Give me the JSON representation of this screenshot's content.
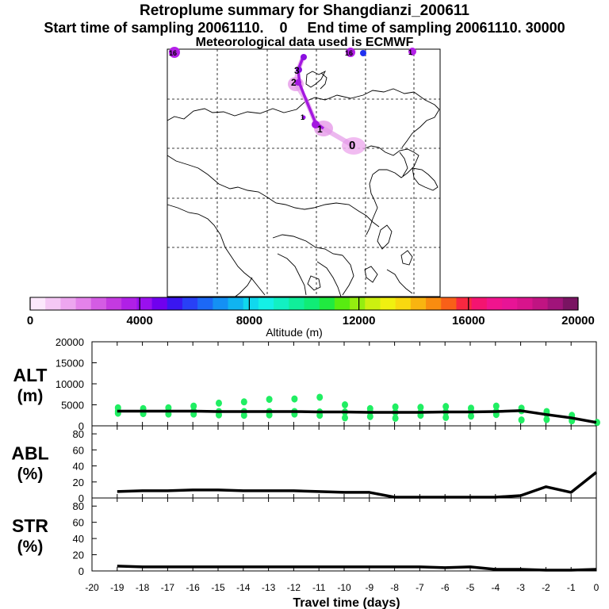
{
  "header": {
    "title": "Retroplume summary for Shangdianzi_200611",
    "line2": "Start time of sampling 20061110.    0     End time of sampling 20061110. 30000",
    "line3": "Meteorological data used is ECMWF"
  },
  "map": {
    "track_labels": [
      "0",
      "1",
      "2",
      "3"
    ],
    "small_markers": [
      "1",
      "16",
      "16",
      "1"
    ]
  },
  "colorbar": {
    "ticks": [
      "0",
      "4000",
      "8000",
      "12000",
      "16000",
      "20000"
    ],
    "label": "Altitude  (m)",
    "colors": [
      "#fce8fc",
      "#f5c8f5",
      "#eda6ef",
      "#e482ea",
      "#d45ce4",
      "#c43ae0",
      "#b020e6",
      "#9a10ee",
      "#7000ee",
      "#3a16f0",
      "#2840f6",
      "#1c68f6",
      "#1490f4",
      "#10b4f0",
      "#10d8ee",
      "#14f0e6",
      "#12f0c2",
      "#10ee9a",
      "#10ec76",
      "#20ea40",
      "#58ec10",
      "#94ee10",
      "#ccf010",
      "#f0f010",
      "#f8d810",
      "#f8b410",
      "#f88c10",
      "#f86018",
      "#f82840",
      "#f41470",
      "#f0148e",
      "#e81496",
      "#d8148c",
      "#c01482",
      "#a0147a",
      "#7a1462"
    ]
  },
  "x_axis": {
    "ticks": [
      "-20",
      "-19",
      "-18",
      "-17",
      "-16",
      "-15",
      "-14",
      "-13",
      "-12",
      "-11",
      "-10",
      "-9",
      "-8",
      "-7",
      "-6",
      "-5",
      "-4",
      "-3",
      "-2",
      "-1",
      "0"
    ],
    "label": "Travel time (days)"
  },
  "panels": {
    "alt": {
      "label_line1": "ALT",
      "label_line2": "(m)",
      "yticks": [
        "0",
        "5000",
        "10000",
        "15000",
        "20000"
      ]
    },
    "abl": {
      "label_line1": "ABL",
      "label_line2": "(%)",
      "yticks": [
        "0",
        "20",
        "40",
        "60",
        "80"
      ]
    },
    "str": {
      "label_line1": "STR",
      "label_line2": "(%)",
      "yticks": [
        "0",
        "20",
        "40",
        "60",
        "80"
      ]
    }
  },
  "chart_data": {
    "type": "line",
    "title": "Retroplume summary for Shangdianzi_200611",
    "xlabel": "Travel time (days)",
    "x": [
      -19,
      -18,
      -17,
      -16,
      -15,
      -14,
      -13,
      -12,
      -11,
      -10,
      -9,
      -8,
      -7,
      -6,
      -5,
      -4,
      -3,
      -2,
      -1,
      0
    ],
    "series": [
      {
        "name": "ALT (m)",
        "ylim": [
          0,
          20000
        ],
        "values": [
          3500,
          3500,
          3500,
          3500,
          3400,
          3400,
          3400,
          3400,
          3300,
          3300,
          3200,
          3200,
          3200,
          3300,
          3300,
          3400,
          3600,
          2700,
          1900,
          800
        ]
      },
      {
        "name": "ABL (%)",
        "ylim": [
          0,
          90
        ],
        "values": [
          8,
          9,
          9,
          10,
          10,
          9,
          9,
          9,
          8,
          7,
          7,
          1,
          1,
          1,
          1,
          1,
          3,
          14,
          7,
          32
        ]
      },
      {
        "name": "STR (%)",
        "ylim": [
          0,
          90
        ],
        "values": [
          6,
          5,
          5,
          5,
          5,
          5,
          5,
          5,
          5,
          5,
          5,
          5,
          5,
          4,
          5,
          2,
          2,
          1,
          1,
          2
        ]
      }
    ],
    "alt_scatter": [
      [
        -19,
        3500
      ],
      [
        -19,
        4300
      ],
      [
        -19,
        3000
      ],
      [
        -18,
        3500
      ],
      [
        -18,
        4100
      ],
      [
        -18,
        2900
      ],
      [
        -17,
        3500
      ],
      [
        -17,
        4300
      ],
      [
        -17,
        2800
      ],
      [
        -16,
        3500
      ],
      [
        -16,
        4700
      ],
      [
        -16,
        2800
      ],
      [
        -15,
        3400
      ],
      [
        -15,
        5400
      ],
      [
        -15,
        2600
      ],
      [
        -14,
        3400
      ],
      [
        -14,
        5700
      ],
      [
        -14,
        2500
      ],
      [
        -13,
        3400
      ],
      [
        -13,
        6300
      ],
      [
        -13,
        2600
      ],
      [
        -12,
        3400
      ],
      [
        -12,
        6400
      ],
      [
        -12,
        2800
      ],
      [
        -11,
        3300
      ],
      [
        -11,
        6800
      ],
      [
        -11,
        2500
      ],
      [
        -10,
        3300
      ],
      [
        -10,
        5000
      ],
      [
        -10,
        1900
      ],
      [
        -9,
        3300
      ],
      [
        -9,
        4100
      ],
      [
        -9,
        2200
      ],
      [
        -8,
        3200
      ],
      [
        -8,
        4500
      ],
      [
        -8,
        1800
      ],
      [
        -7,
        3200
      ],
      [
        -7,
        4400
      ],
      [
        -7,
        2500
      ],
      [
        -6,
        3300
      ],
      [
        -6,
        4600
      ],
      [
        -6,
        2000
      ],
      [
        -5,
        3400
      ],
      [
        -5,
        4200
      ],
      [
        -5,
        2300
      ],
      [
        -4,
        3400
      ],
      [
        -4,
        4700
      ],
      [
        -4,
        2700
      ],
      [
        -3,
        3600
      ],
      [
        -3,
        4200
      ],
      [
        -3,
        1400
      ],
      [
        -2,
        2800
      ],
      [
        -2,
        3400
      ],
      [
        -2,
        1500
      ],
      [
        -1,
        1900
      ],
      [
        -1,
        2500
      ],
      [
        -1,
        1200
      ],
      [
        0,
        800
      ]
    ]
  }
}
